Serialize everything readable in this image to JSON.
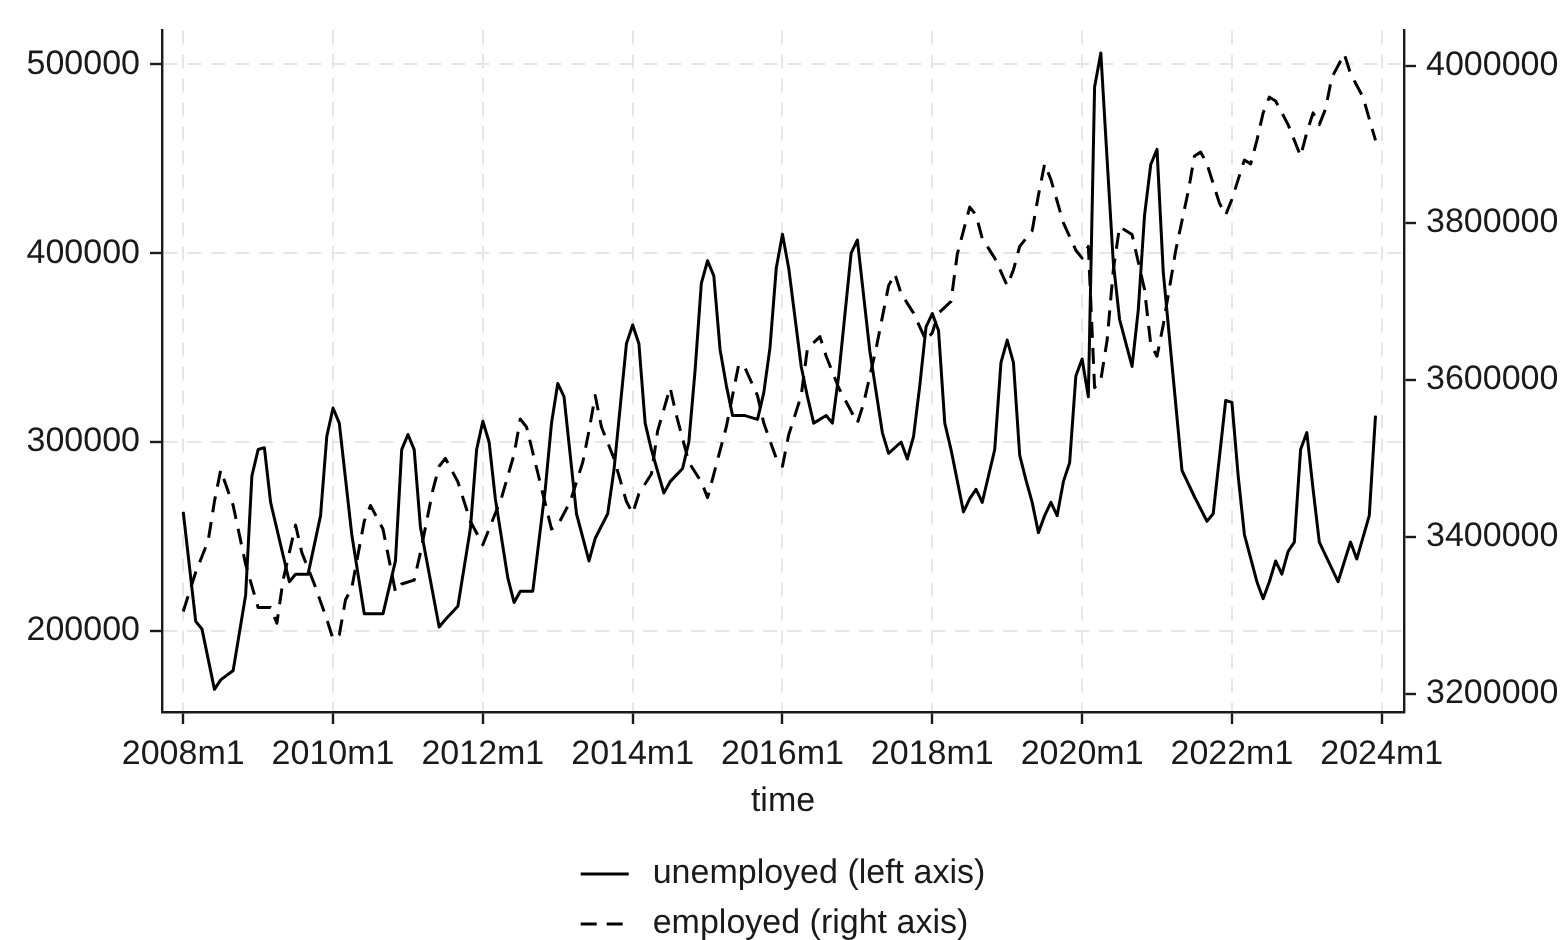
{
  "chart_data": {
    "type": "line",
    "xlabel": "time",
    "xlim": [
      "2007-09-19",
      "2024-04-18"
    ],
    "xticks": [
      {
        "value": "2008-01",
        "label": "2008m1"
      },
      {
        "value": "2010-01",
        "label": "2010m1"
      },
      {
        "value": "2012-01",
        "label": "2012m1"
      },
      {
        "value": "2014-01",
        "label": "2014m1"
      },
      {
        "value": "2016-01",
        "label": "2016m1"
      },
      {
        "value": "2018-01",
        "label": "2018m1"
      },
      {
        "value": "2020-01",
        "label": "2020m1"
      },
      {
        "value": "2022-01",
        "label": "2022m1"
      },
      {
        "value": "2024-01",
        "label": "2024m1"
      }
    ],
    "ylim": [
      157000,
      518000
    ],
    "yticks": [
      200000,
      300000,
      400000,
      500000
    ],
    "y2lim": [
      3177000,
      4045000
    ],
    "y2ticks": [
      3200000,
      3400000,
      3600000,
      3800000,
      4000000
    ],
    "grid": true,
    "legend": "bottom",
    "series": [
      {
        "name": "unemployed (left axis)",
        "color": "#000000",
        "line_style": "solid",
        "x": [
          "2008-01",
          "2008-03",
          "2008-04",
          "2008-06",
          "2008-07",
          "2008-09",
          "2008-11",
          "2008-12",
          "2009-01",
          "2009-02",
          "2009-03",
          "2009-06",
          "2009-07",
          "2009-09",
          "2009-11",
          "2009-12",
          "2010-01",
          "2010-02",
          "2010-04",
          "2010-06",
          "2010-07",
          "2010-09",
          "2010-11",
          "2010-12",
          "2011-01",
          "2011-02",
          "2011-03",
          "2011-06",
          "2011-07",
          "2011-09",
          "2011-11",
          "2011-12",
          "2012-01",
          "2012-02",
          "2012-03",
          "2012-05",
          "2012-06",
          "2012-07",
          "2012-09",
          "2012-11",
          "2012-12",
          "2013-01",
          "2013-02",
          "2013-04",
          "2013-06",
          "2013-07",
          "2013-09",
          "2013-10",
          "2013-12",
          "2014-01",
          "2014-02",
          "2014-03",
          "2014-04",
          "2014-06",
          "2014-07",
          "2014-09",
          "2014-10",
          "2014-11",
          "2014-12",
          "2015-01",
          "2015-02",
          "2015-03",
          "2015-04",
          "2015-05",
          "2015-07",
          "2015-09",
          "2015-10",
          "2015-11",
          "2015-12",
          "2016-01",
          "2016-02",
          "2016-04",
          "2016-05",
          "2016-06",
          "2016-08",
          "2016-09",
          "2016-10",
          "2016-12",
          "2017-01",
          "2017-03",
          "2017-05",
          "2017-06",
          "2017-08",
          "2017-09",
          "2017-10",
          "2017-11",
          "2017-12",
          "2018-01",
          "2018-02",
          "2018-03",
          "2018-04",
          "2018-06",
          "2018-07",
          "2018-08",
          "2018-09",
          "2018-10",
          "2018-11",
          "2018-12",
          "2019-01",
          "2019-02",
          "2019-03",
          "2019-04",
          "2019-05",
          "2019-06",
          "2019-07",
          "2019-08",
          "2019-09",
          "2019-10",
          "2019-11",
          "2019-12",
          "2020-01",
          "2020-02",
          "2020-03",
          "2020-04",
          "2020-05",
          "2020-06",
          "2020-07",
          "2020-09",
          "2020-10",
          "2020-11",
          "2020-12",
          "2021-01",
          "2021-02",
          "2021-04",
          "2021-05",
          "2021-07",
          "2021-09",
          "2021-10",
          "2021-12",
          "2022-01",
          "2022-02",
          "2022-03",
          "2022-05",
          "2022-06",
          "2022-07",
          "2022-08",
          "2022-09",
          "2022-10",
          "2022-11",
          "2022-12",
          "2023-01",
          "2023-02",
          "2023-03",
          "2023-06",
          "2023-08",
          "2023-09",
          "2023-11",
          "2023-12"
        ],
        "values": [
          263000,
          205000,
          201000,
          169000,
          174000,
          179000,
          219000,
          282000,
          296000,
          297000,
          268000,
          226000,
          230000,
          230000,
          261000,
          303000,
          318000,
          310000,
          251000,
          209000,
          209000,
          209000,
          237000,
          296000,
          304000,
          296000,
          255000,
          202000,
          206000,
          213000,
          254000,
          296000,
          311000,
          300000,
          270000,
          228000,
          215000,
          221000,
          221000,
          275000,
          310000,
          331000,
          324000,
          262000,
          237000,
          249000,
          262000,
          285000,
          352000,
          362000,
          352000,
          310000,
          296000,
          273000,
          279000,
          286000,
          300000,
          338000,
          384000,
          396000,
          388000,
          349000,
          330000,
          314000,
          314000,
          312000,
          326000,
          350000,
          392000,
          410000,
          392000,
          340000,
          324000,
          310000,
          314000,
          310000,
          335000,
          400000,
          407000,
          348000,
          305000,
          294000,
          300000,
          291000,
          303000,
          330000,
          361000,
          368000,
          359000,
          310000,
          296000,
          263000,
          270000,
          275000,
          268000,
          282000,
          296000,
          342000,
          354000,
          342000,
          293000,
          280000,
          268000,
          252000,
          261000,
          268000,
          261000,
          279000,
          289000,
          335000,
          344000,
          324000,
          488000,
          506000,
          450000,
          395000,
          365000,
          340000,
          370000,
          420000,
          447000,
          455000,
          390000,
          320000,
          285000,
          271000,
          258000,
          262000,
          322000,
          321000,
          282000,
          251000,
          226000,
          217000,
          226000,
          237000,
          230000,
          242000,
          247000,
          296000,
          305000,
          275000,
          247000,
          226000,
          247000,
          238000,
          261000,
          314000
        ]
      },
      {
        "name": "employed (right axis)",
        "color": "#000000",
        "line_style": "dashed",
        "axis": "y2",
        "x": [
          "2008-01",
          "2008-03",
          "2008-05",
          "2008-06",
          "2008-07",
          "2008-09",
          "2008-11",
          "2009-01",
          "2009-03",
          "2009-04",
          "2009-05",
          "2009-07",
          "2009-08",
          "2009-10",
          "2009-12",
          "2010-01",
          "2010-02",
          "2010-03",
          "2010-04",
          "2010-06",
          "2010-07",
          "2010-09",
          "2010-11",
          "2010-12",
          "2011-02",
          "2011-03",
          "2011-05",
          "2011-06",
          "2011-07",
          "2011-09",
          "2011-11",
          "2012-01",
          "2012-02",
          "2012-04",
          "2012-06",
          "2012-07",
          "2012-08",
          "2012-10",
          "2012-12",
          "2013-01",
          "2013-03",
          "2013-05",
          "2013-06",
          "2013-07",
          "2013-08",
          "2013-10",
          "2013-12",
          "2014-01",
          "2014-02",
          "2014-04",
          "2014-05",
          "2014-07",
          "2014-08",
          "2014-10",
          "2014-12",
          "2015-01",
          "2015-02",
          "2015-04",
          "2015-06",
          "2015-07",
          "2015-09",
          "2015-10",
          "2015-12",
          "2016-01",
          "2016-02",
          "2016-04",
          "2016-05",
          "2016-07",
          "2016-08",
          "2016-10",
          "2016-12",
          "2017-01",
          "2017-02",
          "2017-04",
          "2017-06",
          "2017-07",
          "2017-08",
          "2017-10",
          "2017-12",
          "2018-01",
          "2018-02",
          "2018-04",
          "2018-05",
          "2018-07",
          "2018-08",
          "2018-09",
          "2018-11",
          "2019-01",
          "2019-02",
          "2019-03",
          "2019-05",
          "2019-06",
          "2019-07",
          "2019-08",
          "2019-10",
          "2019-12",
          "2020-01",
          "2020-02",
          "2020-03",
          "2020-04",
          "2020-05",
          "2020-06",
          "2020-07",
          "2020-09",
          "2020-11",
          "2020-12",
          "2021-01",
          "2021-02",
          "2021-04",
          "2021-06",
          "2021-07",
          "2021-08",
          "2021-09",
          "2021-11",
          "2021-12",
          "2022-01",
          "2022-03",
          "2022-04",
          "2022-05",
          "2022-06",
          "2022-07",
          "2022-08",
          "2022-10",
          "2022-12",
          "2023-01",
          "2023-02",
          "2023-03",
          "2023-04",
          "2023-05",
          "2023-07",
          "2023-08",
          "2023-10",
          "2023-12"
        ],
        "values": [
          3305000,
          3355000,
          3395000,
          3445000,
          3485000,
          3440000,
          3365000,
          3310000,
          3310000,
          3290000,
          3345000,
          3415000,
          3380000,
          3340000,
          3295000,
          3270000,
          3275000,
          3320000,
          3335000,
          3420000,
          3440000,
          3410000,
          3330000,
          3340000,
          3345000,
          3380000,
          3460000,
          3490000,
          3500000,
          3470000,
          3420000,
          3390000,
          3410000,
          3450000,
          3505000,
          3550000,
          3540000,
          3475000,
          3410000,
          3415000,
          3445000,
          3495000,
          3535000,
          3580000,
          3540000,
          3500000,
          3445000,
          3430000,
          3455000,
          3480000,
          3535000,
          3590000,
          3555000,
          3495000,
          3470000,
          3450000,
          3480000,
          3540000,
          3620000,
          3615000,
          3580000,
          3545000,
          3500000,
          3490000,
          3530000,
          3580000,
          3640000,
          3655000,
          3630000,
          3590000,
          3560000,
          3545000,
          3570000,
          3640000,
          3720000,
          3735000,
          3710000,
          3685000,
          3650000,
          3660000,
          3685000,
          3700000,
          3760000,
          3820000,
          3810000,
          3780000,
          3755000,
          3720000,
          3740000,
          3770000,
          3790000,
          3835000,
          3875000,
          3855000,
          3800000,
          3765000,
          3755000,
          3770000,
          3590000,
          3600000,
          3650000,
          3740000,
          3795000,
          3785000,
          3715000,
          3645000,
          3630000,
          3670000,
          3765000,
          3840000,
          3885000,
          3890000,
          3875000,
          3825000,
          3810000,
          3830000,
          3880000,
          3875000,
          3905000,
          3940000,
          3960000,
          3955000,
          3925000,
          3885000,
          3915000,
          3940000,
          3925000,
          3945000,
          3985000,
          4015000,
          3990000,
          3960000,
          3905000
        ]
      }
    ]
  }
}
